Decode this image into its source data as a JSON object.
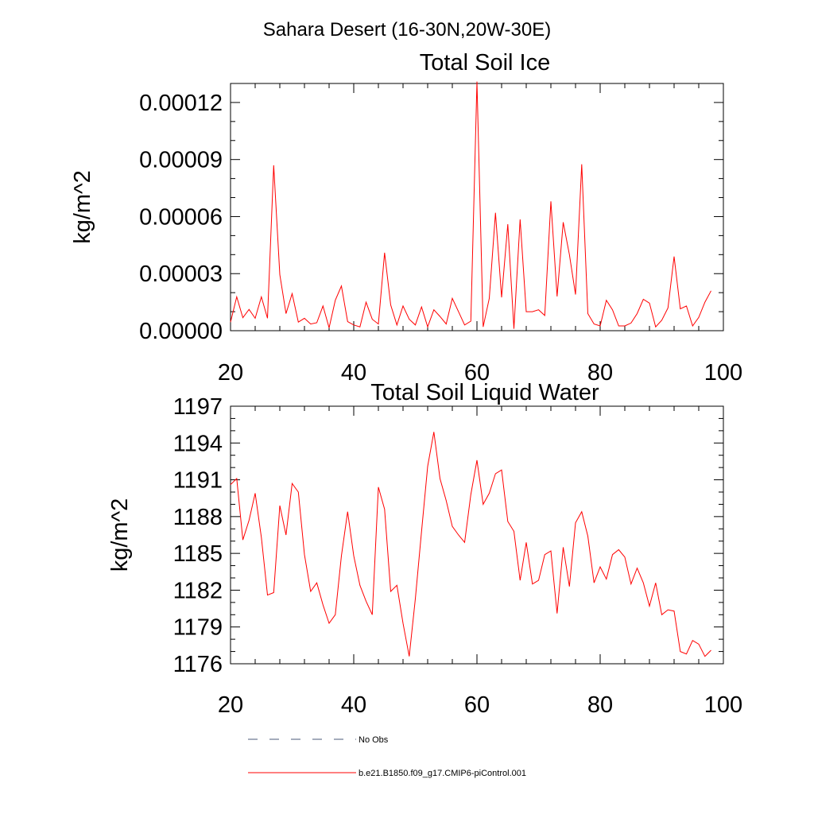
{
  "figure": {
    "title": "Sahara Desert (16-30N,20W-30E)"
  },
  "legend": {
    "entries": [
      {
        "label": "No Obs",
        "style": "dashed",
        "color": "#4a5a7a"
      },
      {
        "label": "b.e21.B1850.f09_g17.CMIP6-piControl.001",
        "style": "solid",
        "color": "#ff0000"
      }
    ]
  },
  "chart_data": [
    {
      "type": "line",
      "title": "Total Soil Ice",
      "xlabel": "",
      "ylabel": "kg/m^2",
      "xlim": [
        20,
        100
      ],
      "ylim": [
        0,
        0.00013
      ],
      "xticks": [
        20,
        40,
        60,
        80,
        100
      ],
      "xtick_labels": [
        "20",
        "40",
        "60",
        "80",
        "100"
      ],
      "yticks": [
        0,
        3e-05,
        6e-05,
        9e-05,
        0.00012
      ],
      "ytick_labels": [
        "0.00000",
        "0.00003",
        "0.00006",
        "0.00009",
        "0.00012"
      ],
      "grid": false,
      "series": [
        {
          "color": "#ff0000",
          "x": [
            20,
            21,
            22,
            23,
            24,
            25,
            26,
            27,
            28,
            29,
            30,
            31,
            32,
            33,
            34,
            35,
            36,
            37,
            38,
            39,
            40,
            41,
            42,
            43,
            44,
            45,
            46,
            47,
            48,
            49,
            50,
            51,
            52,
            53,
            54,
            55,
            56,
            57,
            58,
            59,
            60,
            61,
            62,
            63,
            64,
            65,
            66,
            67,
            68,
            69,
            70,
            71,
            72,
            73,
            74,
            75,
            76,
            77,
            78,
            79,
            80,
            81,
            82,
            83,
            84,
            85,
            86,
            87,
            88,
            89,
            90,
            91,
            92,
            93,
            94,
            95,
            96,
            97,
            98
          ],
          "values": [
            4.5e-06,
            1.78e-05,
            6.8e-06,
            1.12e-05,
            6.5e-06,
            1.78e-05,
            6.5e-06,
            8.7e-05,
            2.95e-05,
            9e-06,
            1.95e-05,
            4.5e-06,
            6.5e-06,
            3.5e-06,
            4.2e-06,
            1.3e-05,
            1.5e-06,
            1.6e-05,
            2.35e-05,
            4.8e-06,
            3e-06,
            2e-06,
            1.5e-05,
            6e-06,
            3.5e-06,
            4.1e-05,
            1.35e-05,
            3e-06,
            1.3e-05,
            6e-06,
            3e-06,
            1.25e-05,
            2e-06,
            1.1e-05,
            7.5e-06,
            3.5e-06,
            1.7e-05,
            1e-05,
            3e-06,
            5e-06,
            0.000131,
            2e-06,
            1.7e-05,
            6.2e-05,
            1.75e-05,
            5.6e-05,
            1e-06,
            5.85e-05,
            1e-05,
            1e-05,
            1.1e-05,
            8e-06,
            6.8e-05,
            1.8e-05,
            5.7e-05,
            4e-05,
            1.9e-05,
            8.75e-05,
            9e-06,
            3.5e-06,
            2.5e-06,
            1.6e-05,
            1.1e-05,
            2.5e-06,
            2.5e-06,
            4e-06,
            9e-06,
            1.65e-05,
            1.45e-05,
            2e-06,
            5.5e-06,
            1.2e-05,
            3.9e-05,
            1.15e-05,
            1.3e-05,
            2.5e-06,
            7e-06,
            1.5e-05,
            2.1e-05
          ]
        }
      ]
    },
    {
      "type": "line",
      "title": "Total Soil Liquid Water",
      "xlabel": "",
      "ylabel": "kg/m^2",
      "xlim": [
        20,
        100
      ],
      "ylim": [
        1176,
        1197
      ],
      "xticks": [
        20,
        40,
        60,
        80,
        100
      ],
      "xtick_labels": [
        "20",
        "40",
        "60",
        "80",
        "100"
      ],
      "yticks": [
        1176,
        1179,
        1182,
        1185,
        1188,
        1191,
        1194,
        1197
      ],
      "ytick_labels": [
        "1176",
        "1179",
        "1182",
        "1185",
        "1188",
        "1191",
        "1194",
        "1197"
      ],
      "grid": false,
      "series": [
        {
          "color": "#ff0000",
          "x": [
            20,
            21,
            22,
            23,
            24,
            25,
            26,
            27,
            28,
            29,
            30,
            31,
            32,
            33,
            34,
            35,
            36,
            37,
            38,
            39,
            40,
            41,
            42,
            43,
            44,
            45,
            46,
            47,
            48,
            49,
            50,
            51,
            52,
            53,
            54,
            55,
            56,
            57,
            58,
            59,
            60,
            61,
            62,
            63,
            64,
            65,
            66,
            67,
            68,
            69,
            70,
            71,
            72,
            73,
            74,
            75,
            76,
            77,
            78,
            79,
            80,
            81,
            82,
            83,
            84,
            85,
            86,
            87,
            88,
            89,
            90,
            91,
            92,
            93,
            94,
            95,
            96,
            97,
            98
          ],
          "values": [
            1190.6,
            1191.1,
            1186.1,
            1187.7,
            1189.9,
            1186.3,
            1181.6,
            1181.8,
            1188.9,
            1186.5,
            1190.7,
            1190.0,
            1184.9,
            1181.9,
            1182.6,
            1180.8,
            1179.3,
            1180.0,
            1184.8,
            1188.4,
            1184.8,
            1182.4,
            1181.1,
            1180.0,
            1190.4,
            1188.6,
            1181.9,
            1182.4,
            1179.3,
            1176.6,
            1181.3,
            1186.8,
            1192.1,
            1194.9,
            1191.1,
            1189.3,
            1187.2,
            1186.5,
            1185.9,
            1189.8,
            1192.6,
            1189.0,
            1189.9,
            1191.5,
            1191.8,
            1187.6,
            1186.8,
            1182.8,
            1185.9,
            1182.5,
            1182.8,
            1184.9,
            1185.2,
            1180.1,
            1185.5,
            1182.3,
            1187.5,
            1188.4,
            1186.4,
            1182.6,
            1183.9,
            1182.9,
            1184.9,
            1185.3,
            1184.7,
            1182.5,
            1183.8,
            1182.6,
            1180.7,
            1182.6,
            1180.0,
            1180.4,
            1180.3,
            1177.0,
            1176.8,
            1177.9,
            1177.6,
            1176.6,
            1177.1
          ]
        }
      ]
    }
  ]
}
